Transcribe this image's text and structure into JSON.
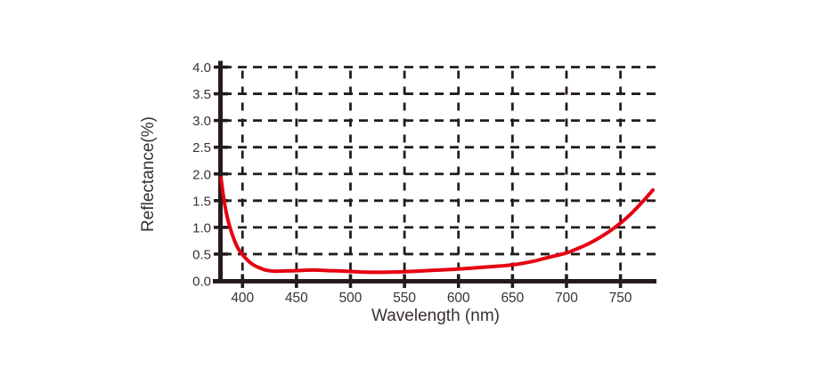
{
  "chart_data": {
    "type": "line",
    "title": "",
    "xlabel": "Wavelength (nm)",
    "ylabel": "Reflectance(%)",
    "xlim": [
      380,
      780
    ],
    "ylim": [
      0.0,
      4.0
    ],
    "x_ticks": [
      400,
      450,
      500,
      550,
      600,
      650,
      700,
      750
    ],
    "y_ticks": [
      0.0,
      0.5,
      1.0,
      1.5,
      2.0,
      2.5,
      3.0,
      3.5,
      4.0
    ],
    "grid": "dashed",
    "legend_position": "none",
    "series": [
      {
        "name": "Reflectance",
        "color": "#e60012",
        "points": [
          [
            380,
            1.93
          ],
          [
            383,
            1.5
          ],
          [
            386,
            1.18
          ],
          [
            390,
            0.9
          ],
          [
            395,
            0.64
          ],
          [
            400,
            0.49
          ],
          [
            405,
            0.38
          ],
          [
            410,
            0.3
          ],
          [
            415,
            0.25
          ],
          [
            420,
            0.21
          ],
          [
            425,
            0.19
          ],
          [
            430,
            0.18
          ],
          [
            440,
            0.185
          ],
          [
            450,
            0.19
          ],
          [
            460,
            0.2
          ],
          [
            470,
            0.2
          ],
          [
            480,
            0.19
          ],
          [
            490,
            0.185
          ],
          [
            500,
            0.175
          ],
          [
            510,
            0.165
          ],
          [
            520,
            0.16
          ],
          [
            530,
            0.16
          ],
          [
            540,
            0.165
          ],
          [
            550,
            0.17
          ],
          [
            560,
            0.18
          ],
          [
            570,
            0.19
          ],
          [
            580,
            0.2
          ],
          [
            590,
            0.21
          ],
          [
            600,
            0.22
          ],
          [
            610,
            0.235
          ],
          [
            620,
            0.25
          ],
          [
            630,
            0.265
          ],
          [
            640,
            0.28
          ],
          [
            650,
            0.3
          ],
          [
            660,
            0.33
          ],
          [
            670,
            0.37
          ],
          [
            680,
            0.42
          ],
          [
            690,
            0.47
          ],
          [
            700,
            0.52
          ],
          [
            710,
            0.6
          ],
          [
            720,
            0.69
          ],
          [
            730,
            0.8
          ],
          [
            740,
            0.93
          ],
          [
            750,
            1.08
          ],
          [
            760,
            1.26
          ],
          [
            770,
            1.47
          ],
          [
            780,
            1.7
          ]
        ]
      }
    ]
  },
  "colors": {
    "background": "#ffffff",
    "axis": "#231c1a",
    "grid": "#231c1a",
    "tick_text": "#393230",
    "axis_label_text": "#393230",
    "curve": "#e60012"
  }
}
